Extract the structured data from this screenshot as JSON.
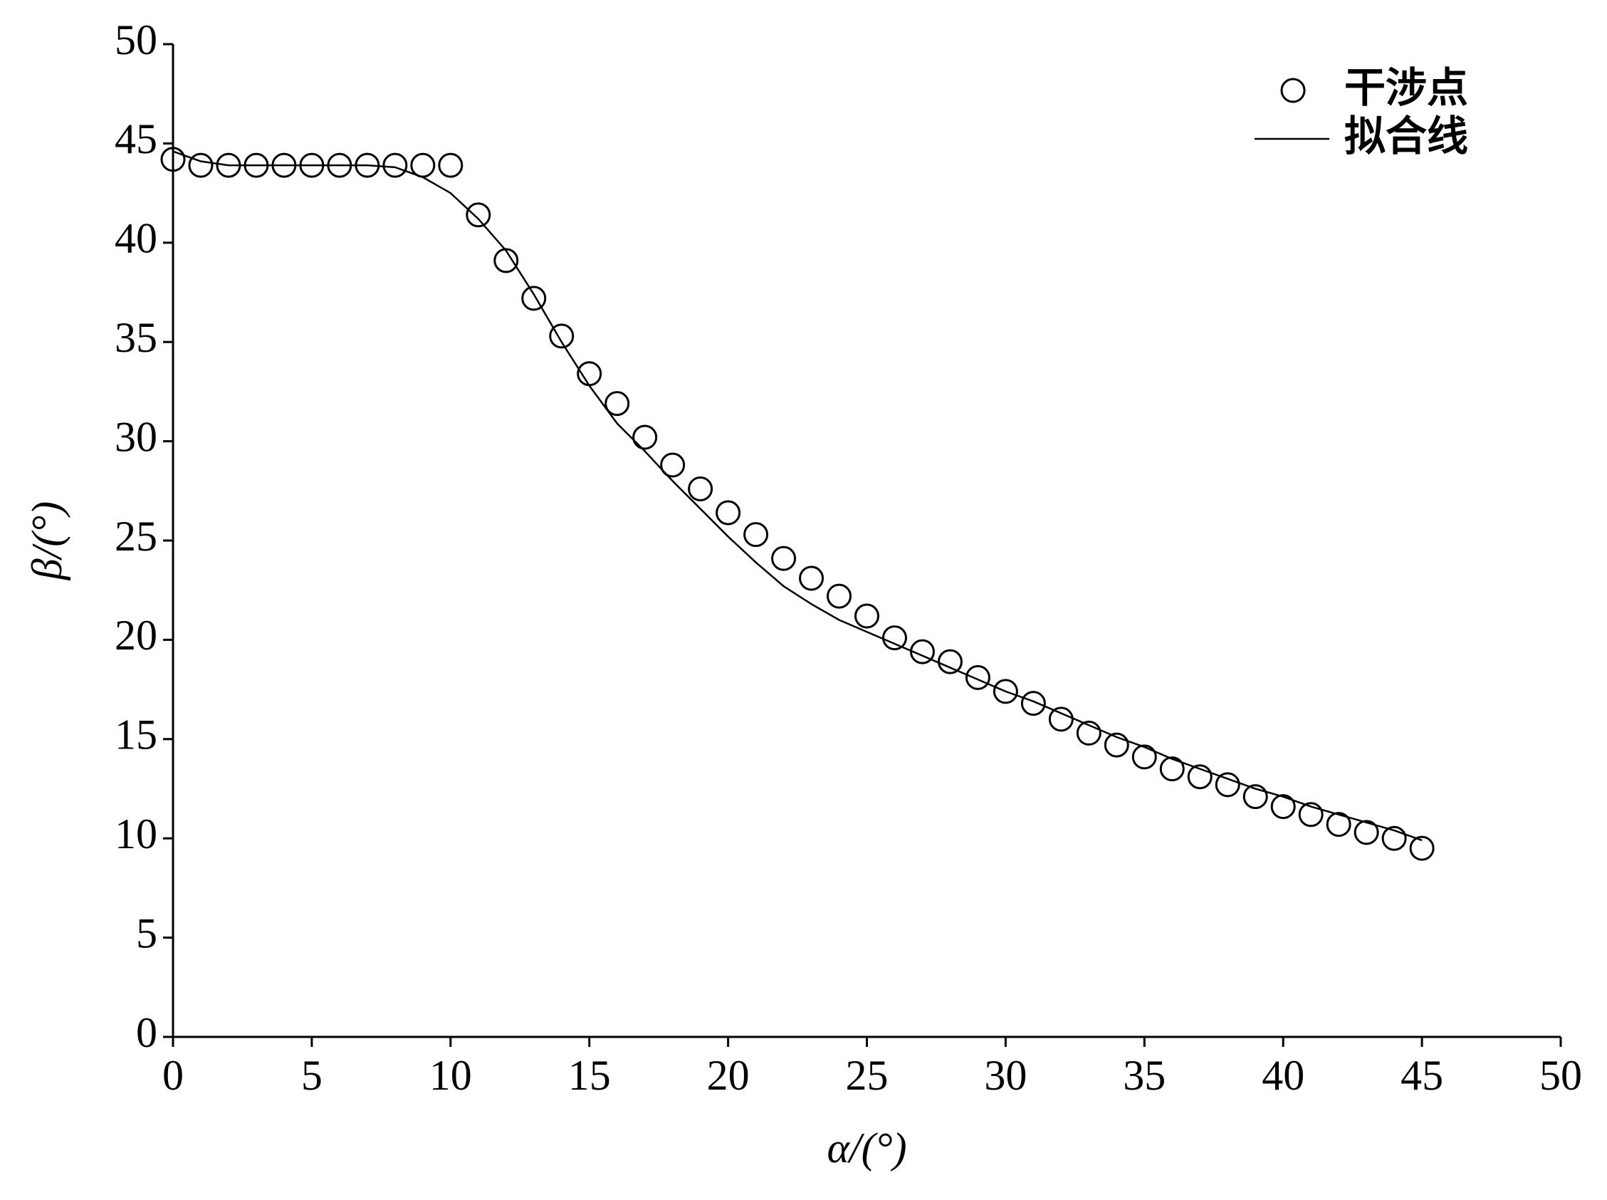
{
  "chart_data": {
    "type": "scatter",
    "x_label": "α/(°)",
    "y_label": "β/(°)",
    "x": [
      0,
      1,
      2,
      3,
      4,
      5,
      6,
      7,
      8,
      9,
      10,
      11,
      12,
      13,
      14,
      15,
      16,
      17,
      18,
      19,
      20,
      21,
      22,
      23,
      24,
      25,
      26,
      27,
      28,
      29,
      30,
      31,
      32,
      33,
      34,
      35,
      36,
      37,
      38,
      39,
      40,
      41,
      42,
      43,
      44,
      45
    ],
    "series": [
      {
        "name": "干涉点",
        "mark": "circle",
        "color": "#000000",
        "values": [
          44.2,
          43.9,
          43.9,
          43.9,
          43.9,
          43.9,
          43.9,
          43.9,
          43.9,
          43.9,
          43.9,
          41.4,
          39.1,
          37.2,
          35.3,
          33.4,
          31.9,
          30.2,
          28.8,
          27.6,
          26.4,
          25.3,
          24.1,
          23.1,
          22.2,
          21.2,
          20.1,
          19.4,
          18.9,
          18.1,
          17.4,
          16.8,
          16.0,
          15.3,
          14.7,
          14.1,
          13.5,
          13.1,
          12.7,
          12.1,
          11.6,
          11.2,
          10.7,
          10.3,
          10.0,
          9.5
        ]
      },
      {
        "name": "拟合线",
        "mark": "line",
        "color": "#000000",
        "values": [
          44.6,
          44.1,
          43.9,
          43.9,
          43.9,
          43.9,
          43.9,
          43.9,
          43.8,
          43.3,
          42.5,
          41.2,
          39.6,
          37.4,
          35.0,
          32.8,
          30.9,
          29.5,
          28.0,
          26.6,
          25.2,
          23.9,
          22.7,
          21.8,
          21.0,
          20.4,
          19.8,
          19.2,
          18.6,
          18.0,
          17.4,
          16.9,
          16.3,
          15.7,
          15.1,
          14.6,
          14.0,
          13.5,
          13.0,
          12.5,
          12.1,
          11.6,
          11.2,
          10.8,
          10.4,
          9.9
        ]
      }
    ],
    "xlim": [
      0,
      50
    ],
    "xticks": [
      0,
      5,
      10,
      15,
      20,
      25,
      30,
      35,
      40,
      45,
      50
    ],
    "ylim": [
      0,
      50
    ],
    "yticks": [
      0,
      5,
      10,
      15,
      20,
      25,
      30,
      35,
      40,
      45,
      50
    ],
    "legend": "top-right"
  }
}
